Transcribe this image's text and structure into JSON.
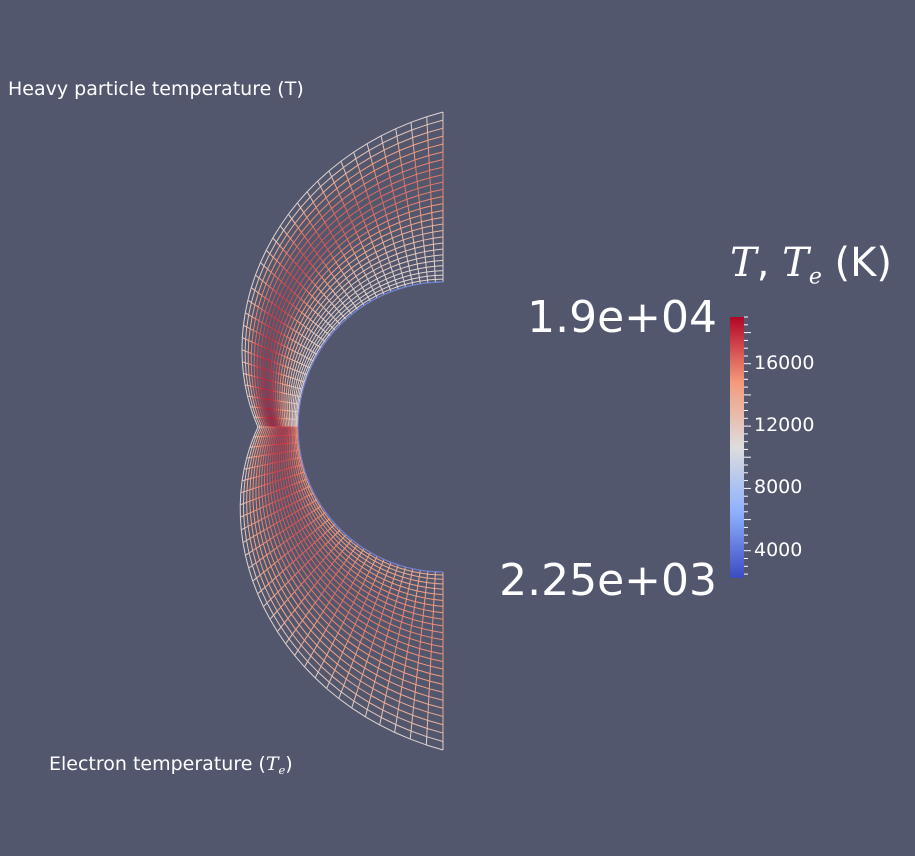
{
  "annotations": {
    "heavy_particle": "Heavy particle temperature (T)",
    "electron_prefix": "Electron temperature (",
    "electron_symbol": "T",
    "electron_sub": "e",
    "electron_suffix": ")"
  },
  "colorbar": {
    "title_T": "T",
    "title_sep": ", ",
    "title_Te": "T",
    "title_Te_sub": "e",
    "title_unit": " (K)",
    "max_label": "1.9e+04",
    "min_label": "2.25e+03",
    "range": [
      2250,
      19000
    ],
    "ticks": [
      {
        "value": 4000,
        "label": "4000"
      },
      {
        "value": 8000,
        "label": "8000"
      },
      {
        "value": 12000,
        "label": "12000"
      },
      {
        "value": 16000,
        "label": "16000"
      }
    ],
    "colormap": [
      "#3b4cc0",
      "#8db0fe",
      "#dddddd",
      "#f49a7b",
      "#b40426"
    ]
  },
  "chart_data": {
    "type": "heatmap",
    "title": "",
    "colorbar_label": "T, Te (K)",
    "value_range": [
      2250,
      19000
    ],
    "colorbar_ticks": [
      4000,
      8000,
      12000,
      16000
    ],
    "domain": "hemispherical shock layer mesh (upper half: T, lower half: Te)",
    "annotations": [
      "Heavy particle temperature (T)",
      "Electron temperature (Te)"
    ],
    "peak_T": 19000,
    "min_T": 2250
  }
}
